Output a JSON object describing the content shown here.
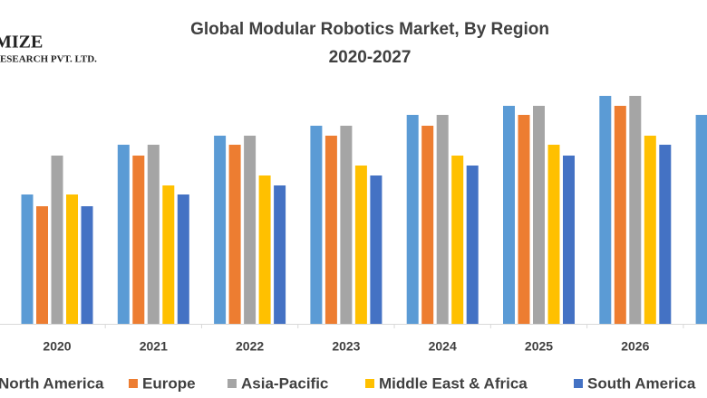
{
  "chart_data": {
    "type": "bar",
    "title": "Global Modular Robotics Market, By Region",
    "subtitle": "2020-2027",
    "logo": [
      "MIZE",
      "RESEARCH PVT. LTD."
    ],
    "categories": [
      "2020",
      "2021",
      "2022",
      "2023",
      "2024",
      "2025",
      "2026",
      null
    ],
    "series": [
      {
        "name": "North America",
        "color": "#5b9bd5",
        "values": [
          143,
          198,
          208,
          219,
          231,
          241,
          252,
          231
        ]
      },
      {
        "name": "Europe",
        "color": "#ed7d31",
        "values": [
          130,
          186,
          198,
          208,
          219,
          231,
          241,
          null
        ]
      },
      {
        "name": "Asia-Pacific",
        "color": "#a5a5a5",
        "values": [
          186,
          198,
          208,
          219,
          231,
          241,
          252,
          null
        ]
      },
      {
        "name": "Middle East & Africa",
        "color": "#ffc000",
        "values": [
          143,
          153,
          164,
          175,
          186,
          198,
          208,
          null
        ]
      },
      {
        "name": "South America",
        "color": "#4472c4",
        "values": [
          130,
          143,
          153,
          164,
          175,
          186,
          198,
          null
        ]
      }
    ],
    "ylim": [
      0,
      260
    ]
  }
}
